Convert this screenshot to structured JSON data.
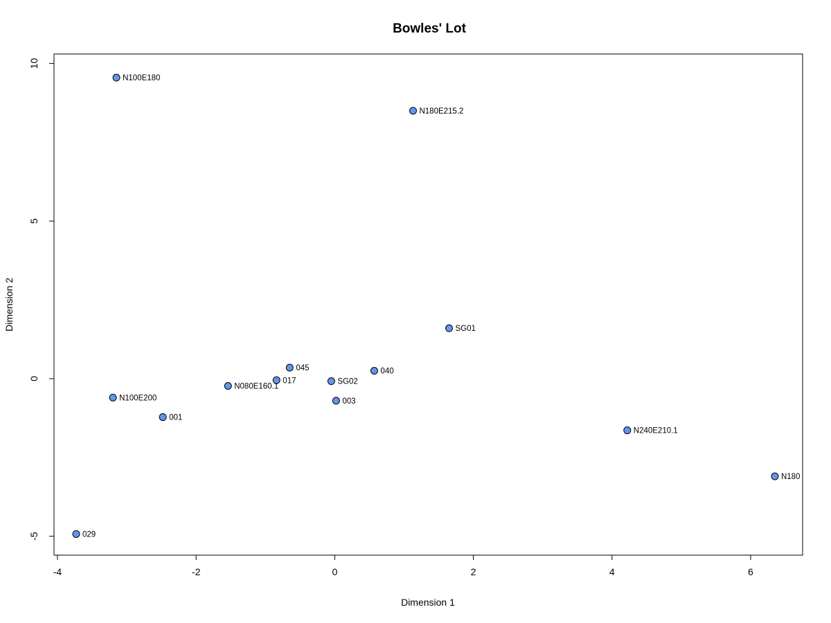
{
  "chart_data": {
    "type": "scatter",
    "title": "Bowles' Lot",
    "xlabel": "Dimension 1",
    "ylabel": "Dimension 2",
    "xlim": [
      -4.05,
      6.75
    ],
    "ylim": [
      -5.6,
      10.3
    ],
    "xticks": [
      "-4",
      "-2",
      "0",
      "2",
      "4",
      "6"
    ],
    "xtick_values": [
      -4,
      -2,
      0,
      2,
      4,
      6
    ],
    "yticks": [
      "-5",
      "0",
      "5",
      "10"
    ],
    "ytick_values": [
      -5,
      0,
      5,
      10
    ],
    "grid": false,
    "legend": "none",
    "point_color": "#6495ED",
    "point_edge_color": "#000000",
    "points": [
      {
        "label": "N100E180",
        "x": -3.15,
        "y": 9.55
      },
      {
        "label": "N180E215.2",
        "x": 1.13,
        "y": 8.5
      },
      {
        "label": "SG01",
        "x": 1.65,
        "y": 1.6
      },
      {
        "label": "045",
        "x": -0.65,
        "y": 0.35
      },
      {
        "label": "040",
        "x": 0.57,
        "y": 0.25
      },
      {
        "label": "017",
        "x": -0.84,
        "y": -0.05
      },
      {
        "label": "SG02",
        "x": -0.05,
        "y": -0.08
      },
      {
        "label": "N080E160.1",
        "x": -1.54,
        "y": -0.23
      },
      {
        "label": "003",
        "x": 0.02,
        "y": -0.7
      },
      {
        "label": "N100E200",
        "x": -3.2,
        "y": -0.6
      },
      {
        "label": "001",
        "x": -2.48,
        "y": -1.22
      },
      {
        "label": "N240E210.1",
        "x": 4.22,
        "y": -1.64
      },
      {
        "label": "N180",
        "x": 6.35,
        "y": -3.1
      },
      {
        "label": "029",
        "x": -3.73,
        "y": -4.93
      }
    ]
  }
}
